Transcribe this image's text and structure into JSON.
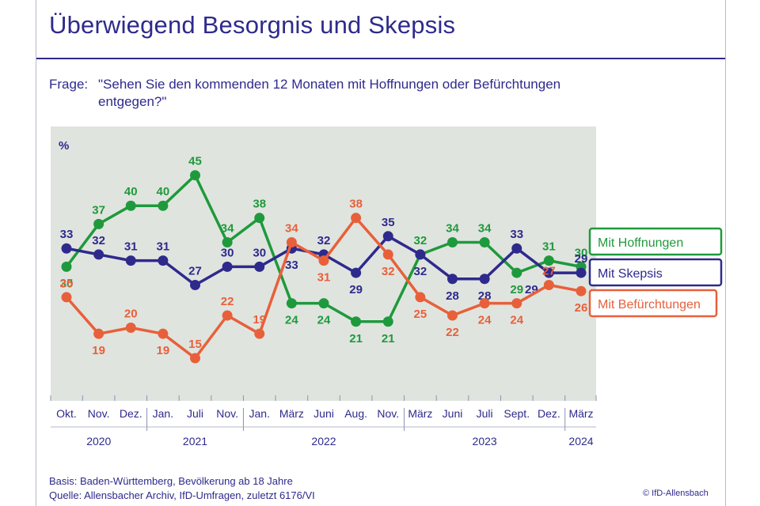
{
  "title": "Überwiegend Besorgnis und Skepsis",
  "question": {
    "label": "Frage:",
    "line1": "\"Sehen Sie den kommenden 12 Monaten mit Hoffnungen oder Befürchtungen",
    "line2": "entgegen?\""
  },
  "footer": {
    "basis": "Basis: Baden-Württemberg, Bevölkerung ab 18 Jahre",
    "source": "Quelle: Allensbacher Archiv, IfD-Umfragen, zuletzt 6176/VI",
    "copyright": "© IfD-Allensbach"
  },
  "colors": {
    "plot_background": "#e0e4df",
    "hoffnungen": "#1e9a3c",
    "skepsis": "#2e2a8c",
    "befuerchtungen": "#e8603a",
    "text": "#2e2a8c"
  },
  "chart_data": {
    "type": "line",
    "ylabel": "%",
    "ylim": [
      8,
      53
    ],
    "grid": false,
    "legend": "right",
    "categories": [
      "Okt.",
      "Nov.",
      "Dez.",
      "Jan.",
      "Juli",
      "Nov.",
      "Jan.",
      "März",
      "Juni",
      "Aug.",
      "Nov.",
      "März",
      "Juni",
      "Juli",
      "Sept.",
      "Dez.",
      "März"
    ],
    "years": [
      {
        "label": "2020",
        "from": 0,
        "to": 2
      },
      {
        "label": "2021",
        "from": 3,
        "to": 5
      },
      {
        "label": "2022",
        "from": 6,
        "to": 10
      },
      {
        "label": "2023",
        "from": 11,
        "to": 15
      },
      {
        "label": "2024",
        "from": 16,
        "to": 16
      }
    ],
    "series": [
      {
        "key": "hoffnungen",
        "name": "Mit Hoffnungen",
        "values": [
          30,
          37,
          40,
          40,
          45,
          34,
          38,
          24,
          24,
          21,
          21,
          32,
          34,
          34,
          29,
          31,
          30
        ]
      },
      {
        "key": "skepsis",
        "name": "Mit Skepsis",
        "values": [
          33,
          32,
          31,
          31,
          27,
          30,
          30,
          33,
          32,
          29,
          35,
          32,
          28,
          28,
          33,
          29,
          29
        ]
      },
      {
        "key": "befuerchtungen",
        "name": "Mit Befürchtungen",
        "values": [
          25,
          19,
          20,
          19,
          15,
          22,
          19,
          34,
          31,
          38,
          32,
          25,
          22,
          24,
          24,
          27,
          26
        ]
      }
    ]
  }
}
